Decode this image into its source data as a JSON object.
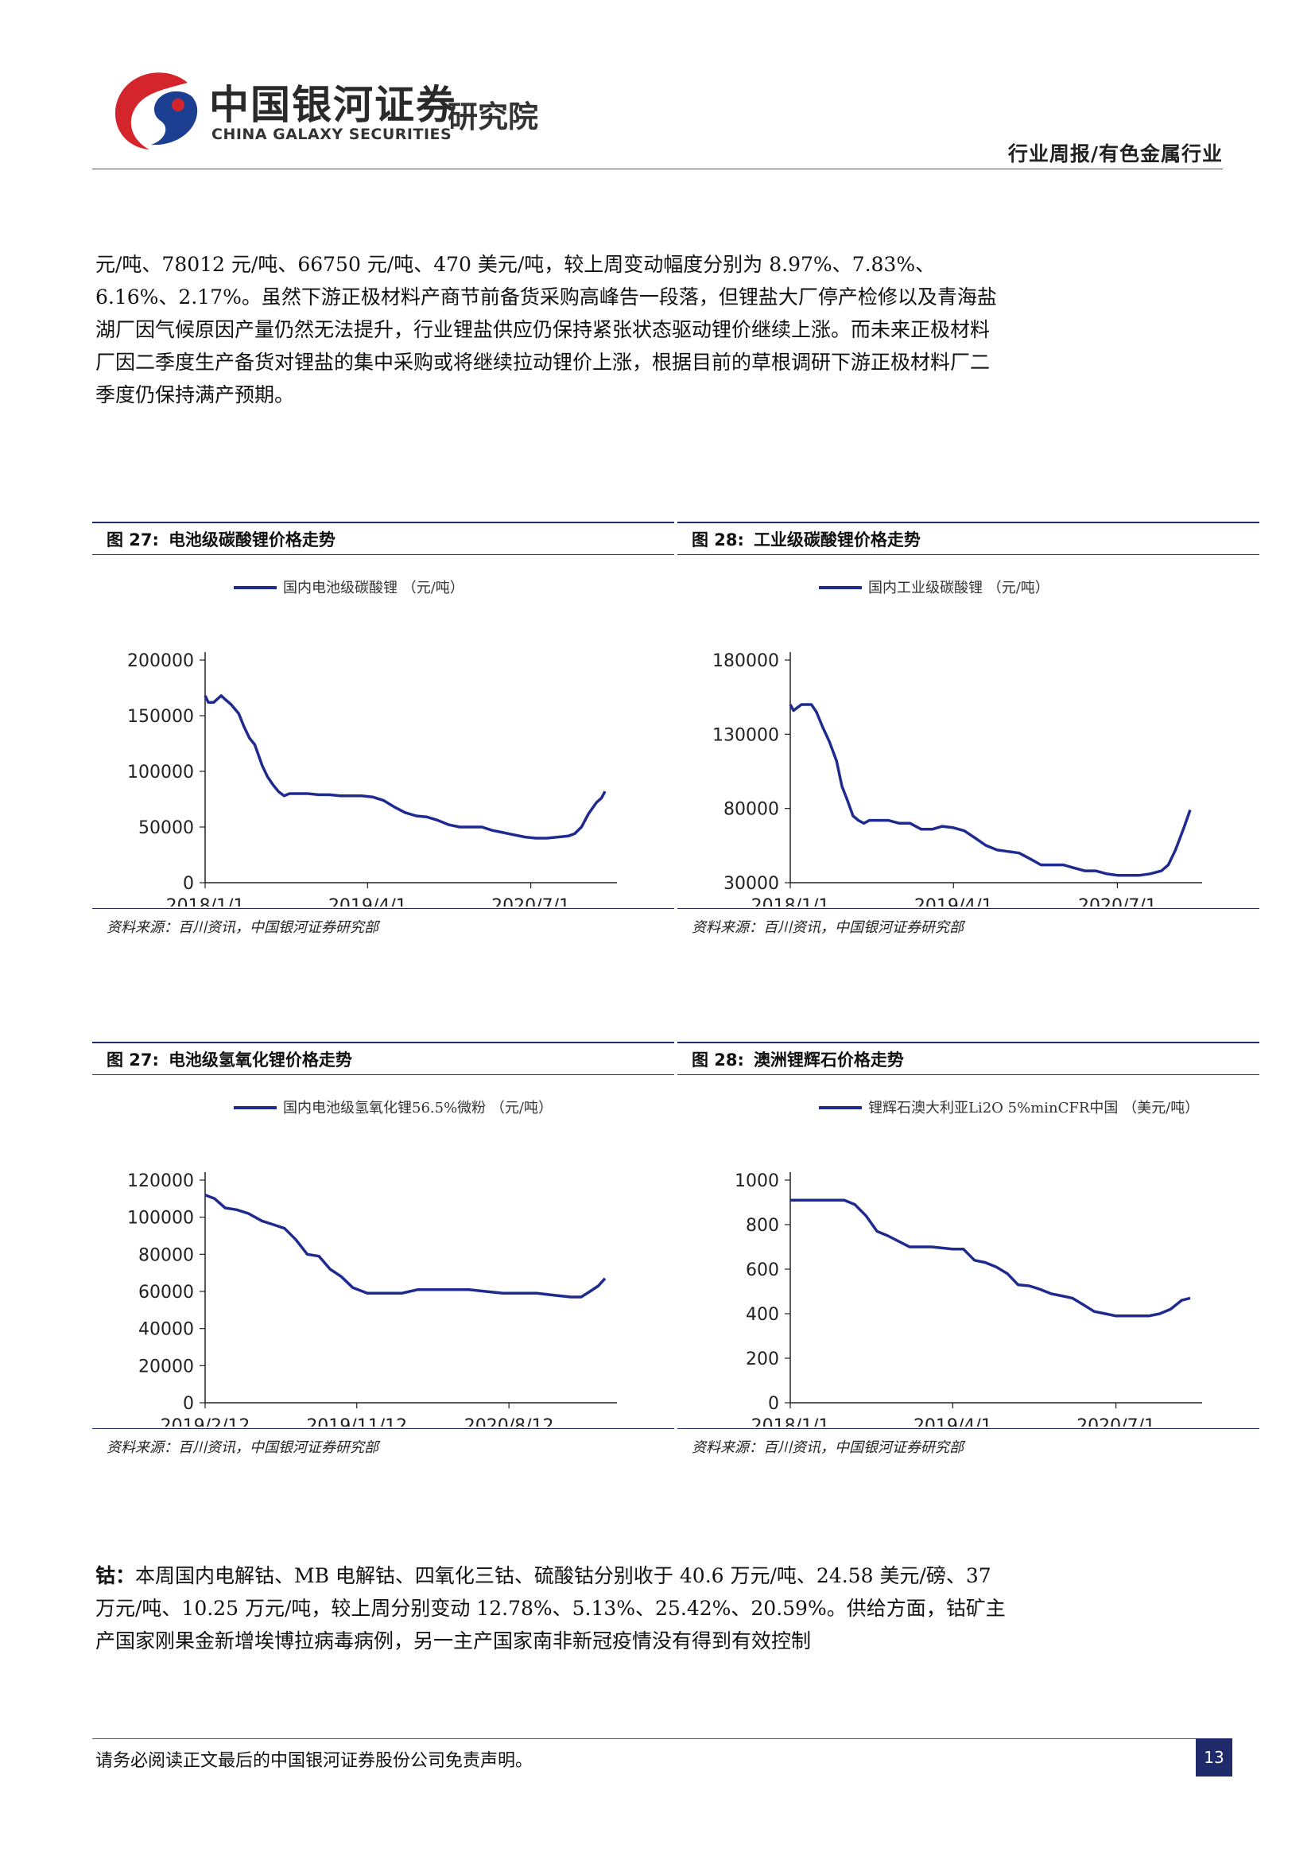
{
  "header": {
    "logo_zh": "中国银河证券",
    "logo_en": "CHINA GALAXY SECURITIES",
    "logo_institute": "研究院",
    "report_type": "行业周报/有色金属行业"
  },
  "body": {
    "paragraph1": "元/吨、78012 元/吨、66750 元/吨、470 美元/吨，较上周变动幅度分别为 8.97%、7.83%、6.16%、2.17%。虽然下游正极材料产商节前备货采购高峰告一段落，但锂盐大厂停产检修以及青海盐湖厂因气候原因产量仍然无法提升，行业锂盐供应仍保持紧张状态驱动锂价继续上涨。而未来正极材料厂因二季度生产备货对锂盐的集中采购或将继续拉动锂价上涨，根据目前的草根调研下游正极材料厂二季度仍保持满产预期。",
    "paragraph2_lead": "钴：",
    "paragraph2_rest": "本周国内电解钴、MB 电解钴、四氧化三钴、硫酸钴分别收于 40.6 万元/吨、24.58 美元/磅、37 万元/吨、10.25 万元/吨，较上周分别变动 12.78%、5.13%、25.42%、20.59%。供给方面，钴矿主产国家刚果金新增埃博拉病毒病例，另一主产国家南非新冠疫情没有得到有效控制"
  },
  "figures": [
    {
      "number": "图 27:",
      "title": "电池级碳酸锂价格走势",
      "source": "资料来源：百川资讯，中国银河证券研究部",
      "chart_data": {
        "type": "line",
        "series": [
          {
            "name": "国内电池级碳酸锂 （元/吨）",
            "x": [
              "2018-01-01",
              "2018-01-10",
              "2018-01-25",
              "2018-02-15",
              "2018-02-25",
              "2018-03-15",
              "2018-04-05",
              "2018-04-20",
              "2018-05-05",
              "2018-05-20",
              "2018-06-10",
              "2018-06-25",
              "2018-07-10",
              "2018-07-25",
              "2018-08-10",
              "2018-08-25",
              "2018-09-15",
              "2018-10-15",
              "2018-11-15",
              "2018-12-15",
              "2019-01-15",
              "2019-02-15",
              "2019-03-15",
              "2019-04-15",
              "2019-05-15",
              "2019-06-15",
              "2019-07-15",
              "2019-08-15",
              "2019-09-15",
              "2019-10-15",
              "2019-11-15",
              "2019-12-15",
              "2020-01-15",
              "2020-02-15",
              "2020-03-15",
              "2020-04-15",
              "2020-05-15",
              "2020-06-15",
              "2020-07-15",
              "2020-08-15",
              "2020-09-15",
              "2020-10-15",
              "2020-11-01",
              "2020-11-20",
              "2020-12-10",
              "2021-01-01",
              "2021-01-15",
              "2021-01-25"
            ],
            "values": [
              168000,
              162000,
              162000,
              168000,
              165000,
              160000,
              152000,
              140000,
              130000,
              124000,
              105000,
              95000,
              88000,
              82000,
              78000,
              80000,
              80000,
              80000,
              79000,
              79000,
              78000,
              78000,
              78000,
              77000,
              74000,
              68000,
              63000,
              60000,
              59000,
              56000,
              52000,
              50000,
              50000,
              50000,
              47000,
              45000,
              43000,
              41000,
              40000,
              40000,
              41000,
              42000,
              44000,
              50000,
              62000,
              72000,
              76000,
              82000
            ]
          }
        ],
        "x_ticks": [
          "2018/1/1",
          "2019/4/1",
          "2020/7/1"
        ],
        "y_ticks": [
          "0",
          "50000",
          "100000",
          "150000",
          "200000"
        ],
        "ylim": [
          0,
          200000
        ]
      }
    },
    {
      "number": "图 28:",
      "title": "工业级碳酸锂价格走势",
      "source": "资料来源：百川资讯，中国银河证券研究部",
      "chart_data": {
        "type": "line",
        "series": [
          {
            "name": "国内工业级碳酸锂 （元/吨）",
            "x": [
              "2018-01-01",
              "2018-01-10",
              "2018-02-01",
              "2018-03-01",
              "2018-03-15",
              "2018-04-01",
              "2018-04-20",
              "2018-05-10",
              "2018-05-25",
              "2018-06-10",
              "2018-06-25",
              "2018-07-10",
              "2018-07-25",
              "2018-08-10",
              "2018-09-01",
              "2018-10-01",
              "2018-11-01",
              "2018-12-01",
              "2019-01-01",
              "2019-02-01",
              "2019-03-01",
              "2019-04-01",
              "2019-05-01",
              "2019-06-01",
              "2019-07-01",
              "2019-08-01",
              "2019-09-01",
              "2019-10-01",
              "2019-11-01",
              "2019-12-01",
              "2020-01-01",
              "2020-02-01",
              "2020-03-01",
              "2020-04-01",
              "2020-05-01",
              "2020-06-01",
              "2020-07-01",
              "2020-08-01",
              "2020-09-01",
              "2020-10-01",
              "2020-11-01",
              "2020-11-20",
              "2020-12-10",
              "2021-01-01",
              "2021-01-20"
            ],
            "values": [
              150000,
              146000,
              150000,
              150000,
              145000,
              135000,
              125000,
              112000,
              95000,
              85000,
              75000,
              72000,
              70000,
              72000,
              72000,
              72000,
              70000,
              70000,
              66000,
              66000,
              68000,
              67000,
              65000,
              60000,
              55000,
              52000,
              51000,
              50000,
              46000,
              42000,
              42000,
              42000,
              40000,
              38000,
              38000,
              36000,
              35000,
              35000,
              35000,
              36000,
              38000,
              42000,
              52000,
              66000,
              79000
            ]
          }
        ],
        "x_ticks": [
          "2018/1/1",
          "2019/4/1",
          "2020/7/1"
        ],
        "y_ticks": [
          "30000",
          "80000",
          "130000",
          "180000"
        ],
        "ylim": [
          30000,
          180000
        ]
      }
    },
    {
      "number": "图 27:",
      "title": "电池级氢氧化锂价格走势",
      "source": "资料来源：百川资讯，中国银河证券研究部",
      "chart_data": {
        "type": "line",
        "series": [
          {
            "name": "国内电池级氢氧化锂56.5%微粉 （元/吨）",
            "x": [
              "2019-02-12",
              "2019-03-01",
              "2019-03-20",
              "2019-04-10",
              "2019-05-01",
              "2019-05-25",
              "2019-06-15",
              "2019-07-05",
              "2019-07-25",
              "2019-08-15",
              "2019-09-05",
              "2019-09-25",
              "2019-10-15",
              "2019-11-05",
              "2019-12-01",
              "2020-01-01",
              "2020-02-01",
              "2020-03-01",
              "2020-04-01",
              "2020-05-01",
              "2020-06-01",
              "2020-07-01",
              "2020-08-01",
              "2020-09-01",
              "2020-10-01",
              "2020-11-01",
              "2020-12-01",
              "2020-12-20",
              "2021-01-05",
              "2021-01-20",
              "2021-02-01"
            ],
            "values": [
              112000,
              110000,
              105000,
              104000,
              102000,
              98000,
              96000,
              94000,
              88000,
              80000,
              79000,
              72000,
              68000,
              62000,
              59000,
              59000,
              59000,
              61000,
              61000,
              61000,
              61000,
              60000,
              59000,
              59000,
              59000,
              58000,
              57000,
              57000,
              60000,
              63000,
              67000
            ]
          }
        ],
        "x_ticks": [
          "2019/2/12",
          "2019/11/12",
          "2020/8/12"
        ],
        "y_ticks": [
          "0",
          "20000",
          "40000",
          "60000",
          "80000",
          "100000",
          "120000"
        ],
        "ylim": [
          0,
          120000
        ]
      }
    },
    {
      "number": "图 28:",
      "title": "澳洲锂辉石价格走势",
      "source": "资料来源：百川资讯，中国银河证券研究部",
      "chart_data": {
        "type": "line",
        "series": [
          {
            "name": "锂辉石澳大利亚Li2O 5%minCFR中国 （美元/吨）",
            "x": [
              "2018-01-01",
              "2018-04-01",
              "2018-06-01",
              "2018-07-01",
              "2018-08-01",
              "2018-09-01",
              "2018-10-01",
              "2018-12-01",
              "2019-02-01",
              "2019-04-01",
              "2019-05-01",
              "2019-06-01",
              "2019-07-01",
              "2019-08-01",
              "2019-09-01",
              "2019-10-01",
              "2019-11-01",
              "2019-12-01",
              "2020-01-01",
              "2020-02-01",
              "2020-03-01",
              "2020-04-01",
              "2020-05-01",
              "2020-06-01",
              "2020-07-01",
              "2020-08-01",
              "2020-09-01",
              "2020-10-01",
              "2020-11-01",
              "2020-12-01",
              "2021-01-01",
              "2021-01-25"
            ],
            "values": [
              910,
              910,
              910,
              890,
              840,
              770,
              750,
              700,
              700,
              690,
              690,
              640,
              630,
              610,
              580,
              530,
              525,
              510,
              490,
              480,
              470,
              440,
              410,
              400,
              390,
              390,
              390,
              390,
              400,
              420,
              460,
              470
            ]
          }
        ],
        "x_ticks": [
          "2018/1/1",
          "2019/4/1",
          "2020/7/1"
        ],
        "y_ticks": [
          "0",
          "200",
          "400",
          "600",
          "800",
          "1000"
        ],
        "ylim": [
          0,
          1000
        ]
      }
    }
  ],
  "footer": {
    "disclaimer": "请务必阅读正文最后的中国银河证券股份公司免责声明。",
    "page_number": "13"
  },
  "colors": {
    "line": "#1f2a8f",
    "rule": "#1f2a6b",
    "logo_red": "#d4252c",
    "logo_blue": "#1d3f91"
  }
}
